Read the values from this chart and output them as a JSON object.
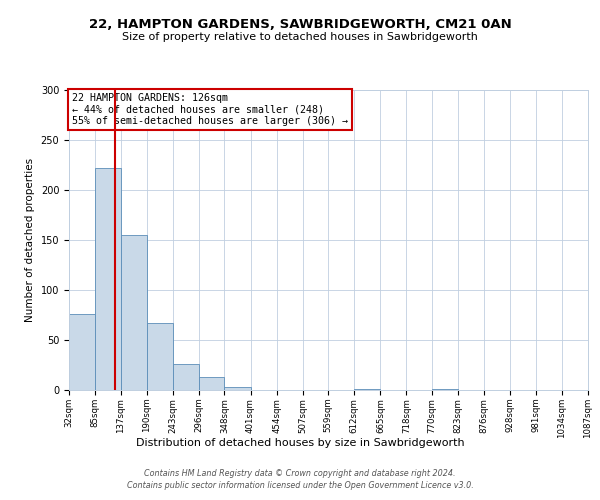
{
  "title1": "22, HAMPTON GARDENS, SAWBRIDGEWORTH, CM21 0AN",
  "title2": "Size of property relative to detached houses in Sawbridgeworth",
  "xlabel": "Distribution of detached houses by size in Sawbridgeworth",
  "ylabel": "Number of detached properties",
  "bin_edges": [
    32,
    85,
    137,
    190,
    243,
    296,
    348,
    401,
    454,
    507,
    559,
    612,
    665,
    718,
    770,
    823,
    876,
    928,
    981,
    1034,
    1087
  ],
  "bin_heights": [
    76,
    222,
    155,
    67,
    26,
    13,
    3,
    0,
    0,
    0,
    0,
    1,
    0,
    0,
    1,
    0,
    0,
    0,
    0,
    0,
    1
  ],
  "tick_labels": [
    "32sqm",
    "85sqm",
    "137sqm",
    "190sqm",
    "243sqm",
    "296sqm",
    "348sqm",
    "401sqm",
    "454sqm",
    "507sqm",
    "559sqm",
    "612sqm",
    "665sqm",
    "718sqm",
    "770sqm",
    "823sqm",
    "876sqm",
    "928sqm",
    "981sqm",
    "1034sqm",
    "1087sqm"
  ],
  "bar_color": "#c9d9e8",
  "bar_edge_color": "#5b8db8",
  "vline_x": 126,
  "vline_color": "#cc0000",
  "annotation_line1": "22 HAMPTON GARDENS: 126sqm",
  "annotation_line2": "← 44% of detached houses are smaller (248)",
  "annotation_line3": "55% of semi-detached houses are larger (306) →",
  "annotation_box_color": "#ffffff",
  "annotation_box_edge_color": "#cc0000",
  "ylim": [
    0,
    300
  ],
  "yticks": [
    0,
    50,
    100,
    150,
    200,
    250,
    300
  ],
  "footer_line1": "Contains HM Land Registry data © Crown copyright and database right 2024.",
  "footer_line2": "Contains public sector information licensed under the Open Government Licence v3.0.",
  "bg_color": "#ffffff",
  "grid_color": "#c0cfe0",
  "title1_fontsize": 9.5,
  "title2_fontsize": 8,
  "ylabel_fontsize": 7.5,
  "xlabel_fontsize": 8
}
